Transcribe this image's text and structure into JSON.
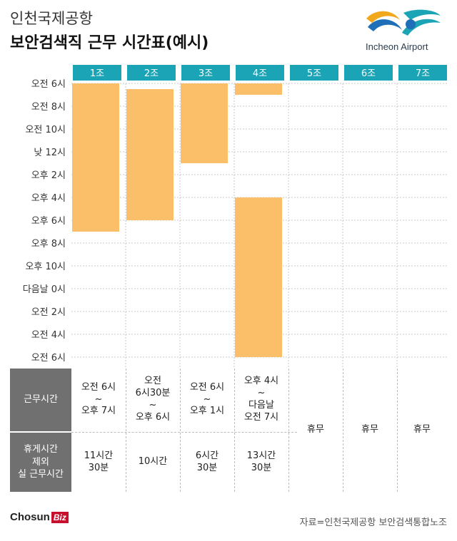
{
  "header": {
    "title_line1": "인천국제공항",
    "title_line2": "보안검색직 근무 시간표(예시)",
    "logo_text": "Incheon Airport"
  },
  "colors": {
    "team_header": "#1ba3b6",
    "bar": "#fbbf6a",
    "row_head": "#707070"
  },
  "chart_data": {
    "type": "bar",
    "orientation": "vertical-time-gantt",
    "categories": [
      "1조",
      "2조",
      "3조",
      "4조",
      "5조",
      "6조",
      "7조"
    ],
    "y_tick_labels": [
      "오전 6시",
      "오전 8시",
      "오전 10시",
      "낮 12시",
      "오후 2시",
      "오후 4시",
      "오후 6시",
      "오후 8시",
      "오후 10시",
      "다음날 0시",
      "오전 2시",
      "오전 4시",
      "오전 6시"
    ],
    "y_range_hours": [
      6,
      30
    ],
    "grid": true,
    "series": [
      {
        "values": [
          {
            "team": "1조",
            "segments": [
              [
                6,
                19
              ]
            ]
          },
          {
            "team": "2조",
            "segments": [
              [
                6.5,
                18
              ]
            ]
          },
          {
            "team": "3조",
            "segments": [
              [
                6,
                13
              ]
            ]
          },
          {
            "team": "4조",
            "segments": [
              [
                6,
                7
              ],
              [
                16,
                30
              ]
            ]
          },
          {
            "team": "5조",
            "segments": []
          },
          {
            "team": "6조",
            "segments": []
          },
          {
            "team": "7조",
            "segments": []
          }
        ]
      }
    ]
  },
  "table": {
    "row_headers": {
      "work_hours": "근무시간",
      "net_hours": "휴게시간\n제외\n실 근무시간"
    },
    "work_hours": [
      "오전 6시\n~\n오후 7시",
      "오전\n6시30분\n~\n오후 6시",
      "오전 6시\n~\n오후 1시",
      "오후 4시\n~\n다음날\n오전 7시"
    ],
    "net_hours": [
      "11시간\n30분",
      "10시간",
      "6시간\n30분",
      "13시간\n30분"
    ],
    "rest": [
      "휴무",
      "휴무",
      "휴무"
    ]
  },
  "footer": {
    "brand": "Chosun",
    "brand_suffix": "Biz",
    "source": "자료=인천국제공항 보안검색통합노조"
  }
}
